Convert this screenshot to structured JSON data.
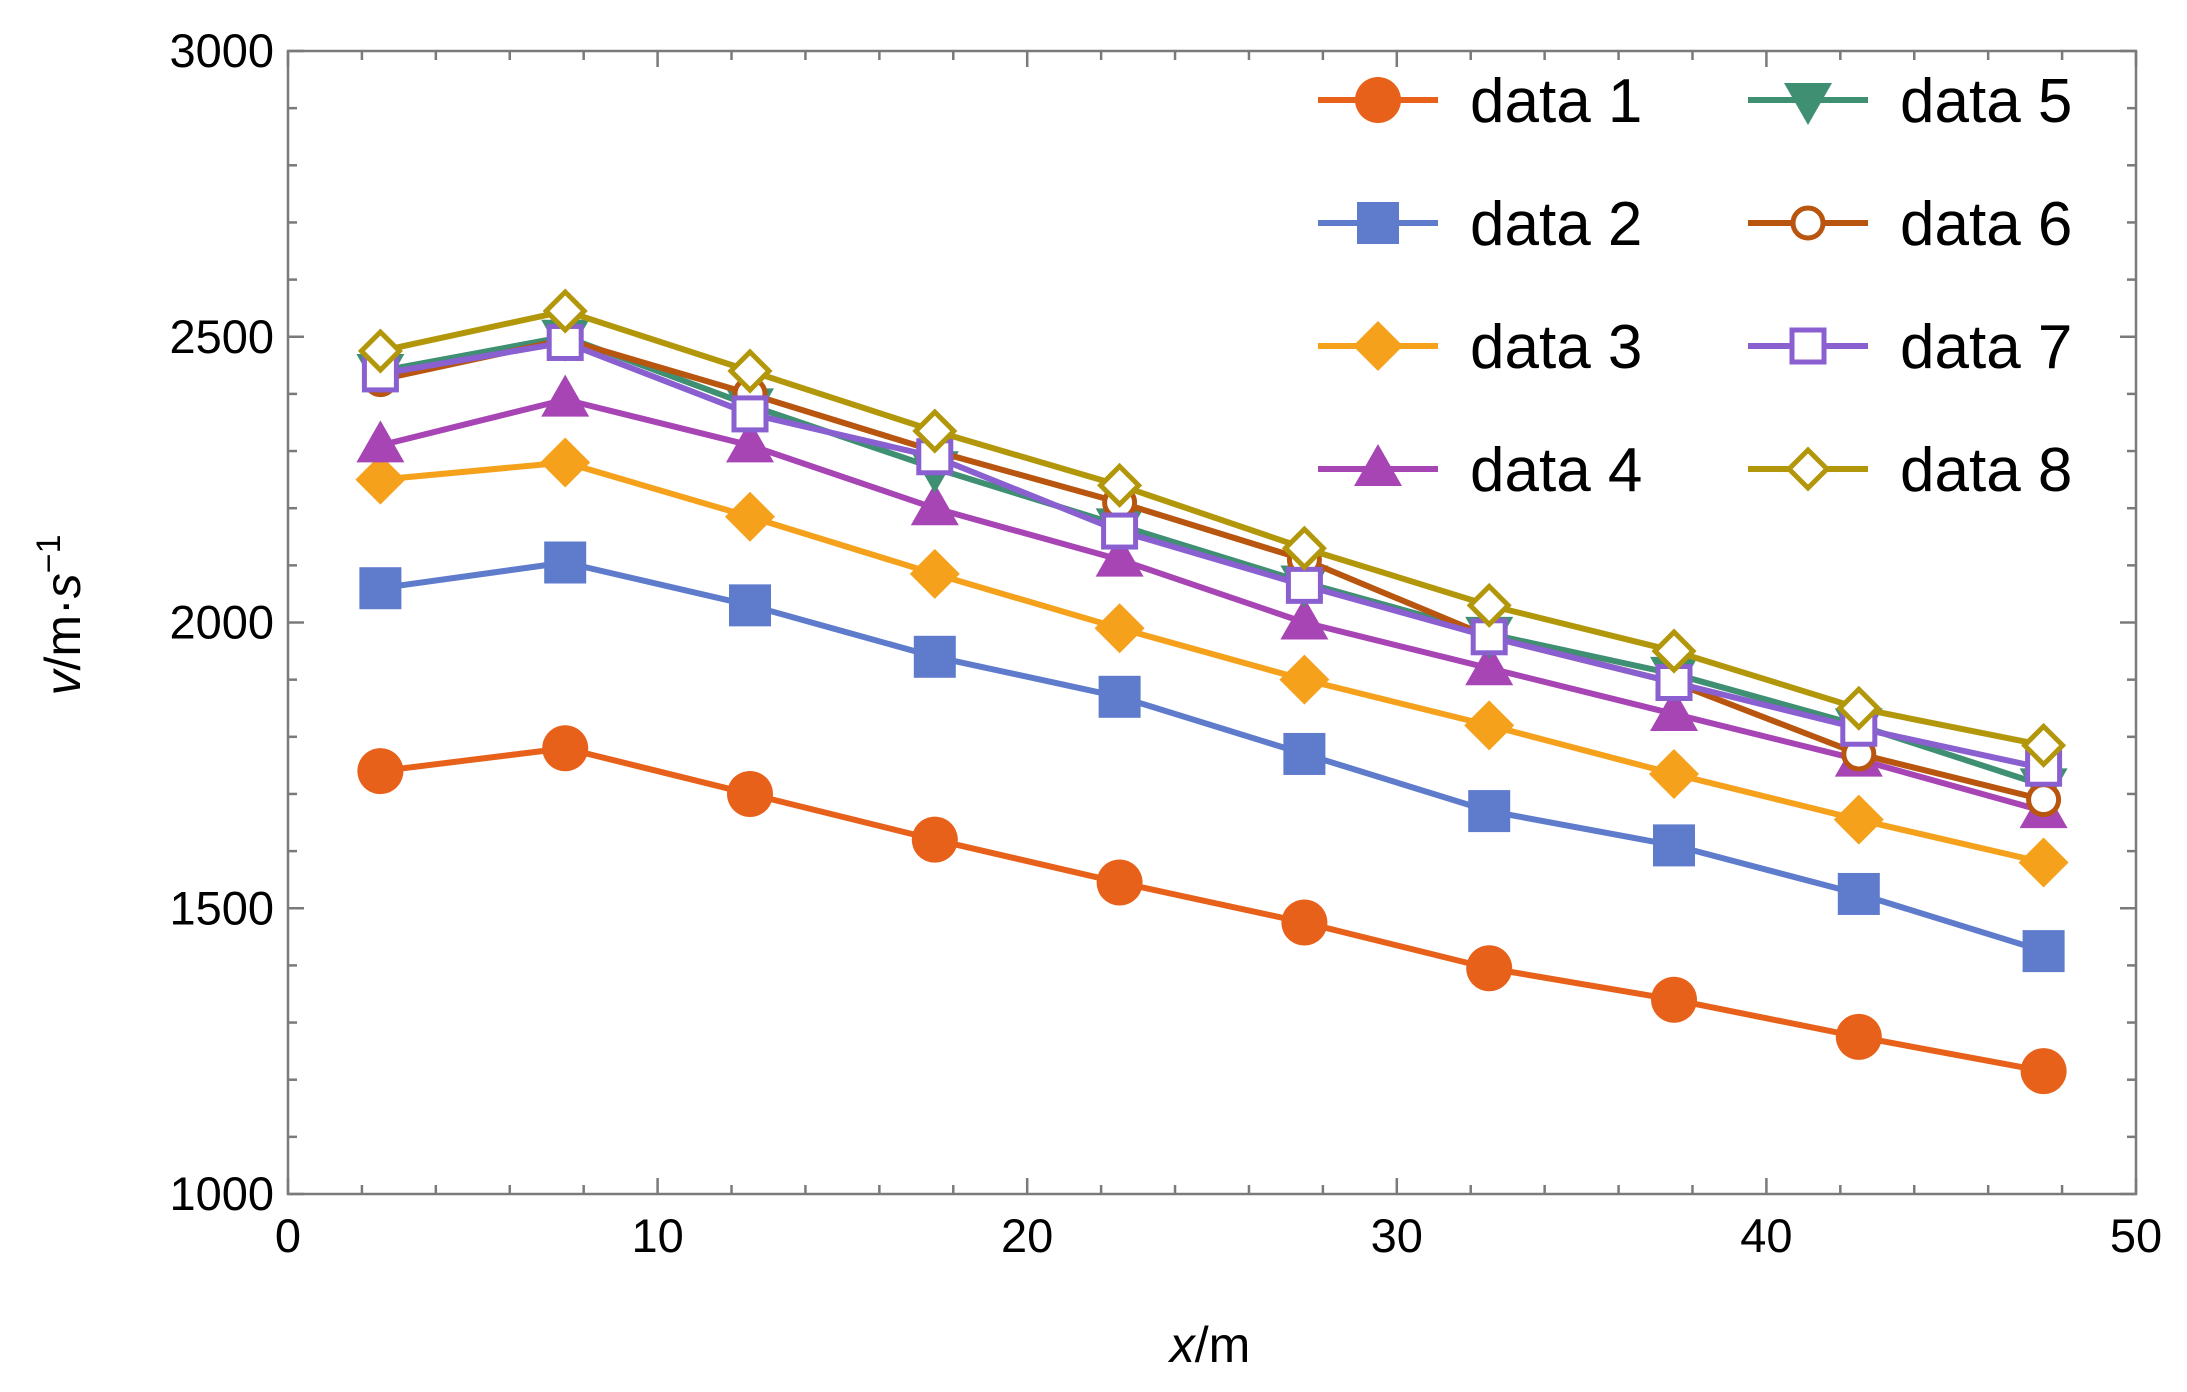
{
  "chart_data": {
    "type": "line",
    "title": "",
    "xlabel": {
      "var": "x",
      "unit": "/m"
    },
    "ylabel": {
      "var": "v",
      "unit": "/m·",
      "var2": "s",
      "sup": "−1"
    },
    "xlim": [
      0,
      50
    ],
    "ylim": [
      1000,
      3000
    ],
    "xticks": [
      0,
      10,
      20,
      30,
      40,
      50
    ],
    "yticks": [
      1000,
      1500,
      2000,
      2500,
      3000
    ],
    "grid": false,
    "legend_position": "top-right",
    "x": [
      2.5,
      7.5,
      12.5,
      17.5,
      22.5,
      27.5,
      32.5,
      37.5,
      42.5,
      47.5
    ],
    "series": [
      {
        "name": "data 1",
        "color": "#E8611A",
        "marker": "circle-filled",
        "values": [
          1740,
          1780,
          1700,
          1620,
          1545,
          1475,
          1395,
          1340,
          1275,
          1215
        ]
      },
      {
        "name": "data 2",
        "color": "#5E7BCC",
        "marker": "square-filled",
        "values": [
          2060,
          2105,
          2030,
          1940,
          1870,
          1770,
          1670,
          1610,
          1525,
          1425
        ]
      },
      {
        "name": "data 3",
        "color": "#F5A11C",
        "marker": "diamond-filled",
        "values": [
          2250,
          2280,
          2185,
          2085,
          1990,
          1900,
          1820,
          1735,
          1655,
          1580
        ]
      },
      {
        "name": "data 4",
        "color": "#A745B5",
        "marker": "triangle-up-filled",
        "values": [
          2310,
          2390,
          2310,
          2200,
          2110,
          2000,
          1920,
          1840,
          1760,
          1670
        ]
      },
      {
        "name": "data 5",
        "color": "#3F8F73",
        "marker": "triangle-down-filled",
        "values": [
          2440,
          2500,
          2380,
          2270,
          2170,
          2070,
          1980,
          1910,
          1820,
          1715
        ]
      },
      {
        "name": "data 6",
        "color": "#B8560F",
        "marker": "circle-open",
        "values": [
          2425,
          2495,
          2400,
          2300,
          2210,
          2110,
          1975,
          1895,
          1770,
          1690
        ]
      },
      {
        "name": "data 7",
        "color": "#8A5FD0",
        "marker": "square-open",
        "values": [
          2435,
          2490,
          2365,
          2290,
          2160,
          2065,
          1975,
          1895,
          1815,
          1745
        ]
      },
      {
        "name": "data 8",
        "color": "#B3970B",
        "marker": "diamond-open",
        "values": [
          2475,
          2545,
          2440,
          2335,
          2240,
          2130,
          2030,
          1950,
          1850,
          1785
        ]
      }
    ]
  }
}
